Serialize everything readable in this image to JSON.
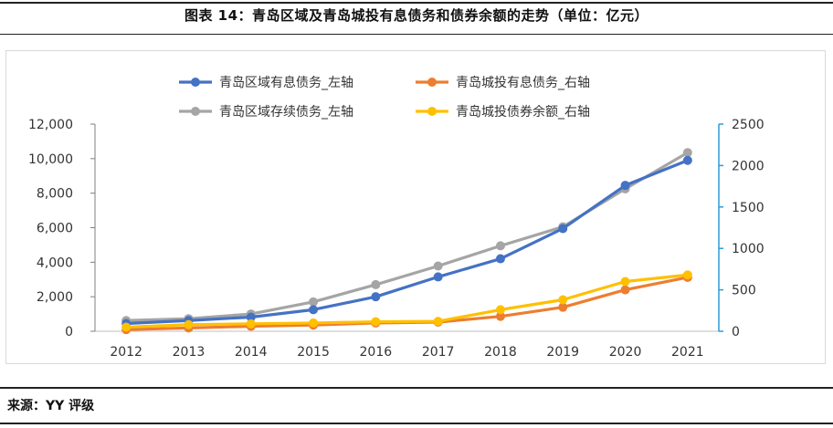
{
  "figure": {
    "title": "图表 14：青岛区域及青岛城投有息债务和债券余额的走势（单位：亿元）",
    "source": "来源：YY 评级"
  },
  "colors": {
    "series_blue": "#4472C4",
    "series_orange": "#ED7D31",
    "series_gray": "#A5A5A5",
    "series_yellow": "#FFC000",
    "axis_left": "#7f7f7f",
    "axis_right": "#2E9BD6"
  },
  "chart_data": {
    "type": "line",
    "categories": [
      "2012",
      "2013",
      "2014",
      "2015",
      "2016",
      "2017",
      "2018",
      "2019",
      "2020",
      "2021"
    ],
    "left_axis": {
      "ylim": [
        0,
        12000
      ],
      "ticks": [
        "0",
        "2,000",
        "4,000",
        "6,000",
        "8,000",
        "10,000",
        "12,000"
      ],
      "tick_values": [
        0,
        2000,
        4000,
        6000,
        8000,
        10000,
        12000
      ]
    },
    "right_axis": {
      "ylim": [
        0,
        2500
      ],
      "ticks": [
        "0",
        "500",
        "1000",
        "1500",
        "2000",
        "2500"
      ],
      "tick_values": [
        0,
        500,
        1000,
        1500,
        2000,
        2500
      ]
    },
    "grid": false,
    "legend_position": "top",
    "series": [
      {
        "name": "青岛区域有息债务_左轴",
        "axis": "left",
        "color": "#4472C4",
        "values": [
          450,
          620,
          820,
          1250,
          2000,
          3150,
          4200,
          5950,
          8450,
          9900
        ]
      },
      {
        "name": "青岛城投有息债务_右轴",
        "axis": "right",
        "color": "#ED7D31",
        "values": [
          20,
          40,
          60,
          75,
          100,
          110,
          180,
          290,
          500,
          650
        ]
      },
      {
        "name": "青岛区域存续债务_左轴",
        "axis": "left",
        "color": "#A5A5A5",
        "values": [
          620,
          730,
          1000,
          1700,
          2700,
          3780,
          4950,
          6050,
          8250,
          10350
        ]
      },
      {
        "name": "青岛城投债券余额_右轴",
        "axis": "right",
        "color": "#FFC000",
        "values": [
          50,
          80,
          90,
          100,
          115,
          120,
          260,
          380,
          600,
          680
        ]
      }
    ]
  }
}
